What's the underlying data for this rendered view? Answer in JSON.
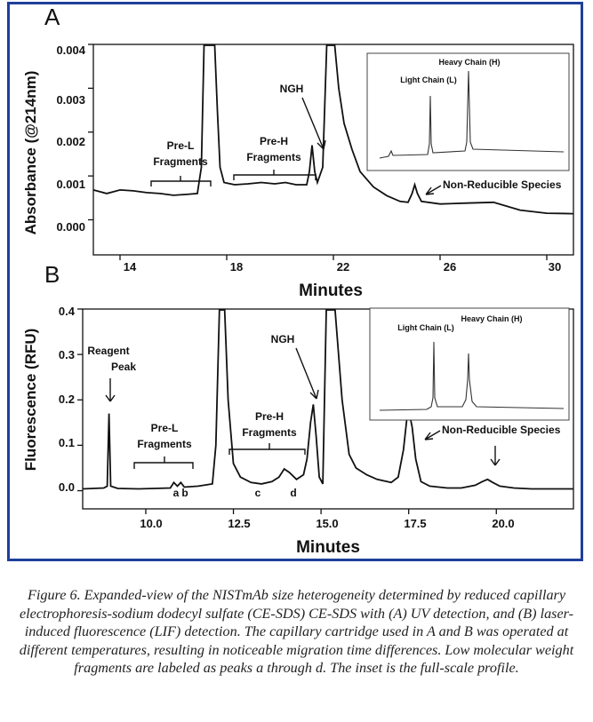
{
  "chart_data": [
    {
      "panel": "A",
      "type": "line",
      "ylabel": "Absorbance (@214nm)",
      "xlabel": "Minutes",
      "xlim": [
        13,
        31
      ],
      "ylim": [
        -0.0008,
        0.004
      ],
      "x_ticks": [
        "14",
        "18",
        "22",
        "26",
        "30"
      ],
      "y_ticks": [
        "0.004",
        "0.003",
        "0.002",
        "0.001",
        "0.000"
      ],
      "trace": [
        [
          13.0,
          0.00068
        ],
        [
          13.5,
          0.0006
        ],
        [
          14.0,
          0.00068
        ],
        [
          14.5,
          0.00066
        ],
        [
          15.0,
          0.00062
        ],
        [
          15.5,
          0.0006
        ],
        [
          16.0,
          0.00056
        ],
        [
          16.5,
          0.00058
        ],
        [
          16.9,
          0.0006
        ],
        [
          17.05,
          0.0012
        ],
        [
          17.15,
          0.004
        ],
        [
          17.55,
          0.004
        ],
        [
          17.65,
          0.0025
        ],
        [
          17.75,
          0.0012
        ],
        [
          17.9,
          0.00085
        ],
        [
          18.3,
          0.0008
        ],
        [
          18.8,
          0.00082
        ],
        [
          19.3,
          0.00085
        ],
        [
          19.8,
          0.00082
        ],
        [
          20.2,
          0.00085
        ],
        [
          20.6,
          0.0008
        ],
        [
          21.0,
          0.0008
        ],
        [
          21.1,
          0.0011
        ],
        [
          21.2,
          0.0017
        ],
        [
          21.3,
          0.0011
        ],
        [
          21.4,
          0.00085
        ],
        [
          21.6,
          0.0012
        ],
        [
          21.75,
          0.004
        ],
        [
          22.05,
          0.004
        ],
        [
          22.2,
          0.003
        ],
        [
          22.4,
          0.0022
        ],
        [
          22.7,
          0.0016
        ],
        [
          23.0,
          0.0011
        ],
        [
          23.5,
          0.00075
        ],
        [
          24.0,
          0.00055
        ],
        [
          24.5,
          0.00042
        ],
        [
          24.8,
          0.0004
        ],
        [
          24.95,
          0.0006
        ],
        [
          25.05,
          0.0008
        ],
        [
          25.15,
          0.0006
        ],
        [
          25.3,
          0.00042
        ],
        [
          26.0,
          0.00036
        ],
        [
          27.0,
          0.00038
        ],
        [
          28.0,
          0.0004
        ],
        [
          29.0,
          0.00022
        ],
        [
          30.0,
          0.00015
        ],
        [
          31.0,
          0.00014
        ]
      ],
      "annotations": {
        "pre_l": [
          "Pre-L",
          "Fragments"
        ],
        "pre_h": [
          "Pre-H",
          "Fragments"
        ],
        "ngh": "NGH",
        "nrs": "Non-Reducible Species"
      },
      "inset": {
        "light_chain": "Light Chain (L)",
        "heavy_chain": "Heavy Chain (H)"
      }
    },
    {
      "panel": "B",
      "type": "line",
      "ylabel": "Fluorescence (RFU)",
      "xlabel": "Minutes",
      "xlim": [
        8.2,
        22.2
      ],
      "ylim": [
        -0.04,
        0.4
      ],
      "x_ticks": [
        "10.0",
        "12.5",
        "15.0",
        "17.5",
        "20.0"
      ],
      "y_ticks": [
        "0.4",
        "0.3",
        "0.2",
        "0.1",
        "0.0"
      ],
      "trace": [
        [
          8.2,
          0.004
        ],
        [
          8.8,
          0.006
        ],
        [
          8.9,
          0.01
        ],
        [
          8.95,
          0.17
        ],
        [
          9.0,
          0.01
        ],
        [
          9.2,
          0.005
        ],
        [
          9.8,
          0.004
        ],
        [
          10.7,
          0.006
        ],
        [
          10.8,
          0.018
        ],
        [
          10.9,
          0.01
        ],
        [
          11.0,
          0.018
        ],
        [
          11.1,
          0.008
        ],
        [
          11.5,
          0.01
        ],
        [
          11.9,
          0.015
        ],
        [
          12.0,
          0.1
        ],
        [
          12.1,
          0.4
        ],
        [
          12.25,
          0.4
        ],
        [
          12.35,
          0.2
        ],
        [
          12.5,
          0.06
        ],
        [
          12.7,
          0.03
        ],
        [
          13.0,
          0.018
        ],
        [
          13.3,
          0.015
        ],
        [
          13.6,
          0.02
        ],
        [
          13.8,
          0.03
        ],
        [
          13.95,
          0.048
        ],
        [
          14.1,
          0.04
        ],
        [
          14.3,
          0.025
        ],
        [
          14.5,
          0.035
        ],
        [
          14.6,
          0.07
        ],
        [
          14.7,
          0.15
        ],
        [
          14.78,
          0.19
        ],
        [
          14.86,
          0.12
        ],
        [
          14.95,
          0.03
        ],
        [
          15.05,
          0.015
        ],
        [
          15.15,
          0.4
        ],
        [
          15.4,
          0.4
        ],
        [
          15.6,
          0.2
        ],
        [
          15.8,
          0.08
        ],
        [
          16.0,
          0.05
        ],
        [
          16.3,
          0.035
        ],
        [
          16.6,
          0.025
        ],
        [
          17.0,
          0.018
        ],
        [
          17.2,
          0.03
        ],
        [
          17.35,
          0.09
        ],
        [
          17.45,
          0.16
        ],
        [
          17.52,
          0.17
        ],
        [
          17.6,
          0.14
        ],
        [
          17.7,
          0.07
        ],
        [
          17.85,
          0.02
        ],
        [
          18.1,
          0.01
        ],
        [
          18.6,
          0.006
        ],
        [
          19.0,
          0.006
        ],
        [
          19.4,
          0.012
        ],
        [
          19.6,
          0.02
        ],
        [
          19.75,
          0.025
        ],
        [
          19.9,
          0.018
        ],
        [
          20.1,
          0.01
        ],
        [
          20.5,
          0.006
        ],
        [
          21.0,
          0.004
        ],
        [
          22.2,
          0.004
        ]
      ],
      "annotations": {
        "reagent": [
          "Reagent",
          "Peak"
        ],
        "pre_l": [
          "Pre-L",
          "Fragments"
        ],
        "pre_h": [
          "Pre-H",
          "Fragments"
        ],
        "ngh": "NGH",
        "nrs": "Non-Reducible Species",
        "peak_a": "a",
        "peak_b": "b",
        "peak_c": "c",
        "peak_d": "d"
      },
      "inset": {
        "light_chain": "Light Chain (L)",
        "heavy_chain": "Heavy Chain (H)"
      }
    }
  ],
  "caption": "Figure 6.  Expanded-view of the NISTmAb size heterogeneity determined by reduced capillary electrophoresis-sodium dodecyl sulfate (CE-SDS) CE-SDS with (A) UV detection, and (B) laser-induced fluorescence (LIF) detection. The capillary cartridge used in A and B was operated at different temperatures, resulting in noticeable migration time differences.  Low molecular weight fragments are labeled as peaks a through d. The inset is the full-scale profile.",
  "colors": {
    "frame": "#1f3f9a",
    "trace": "#111111"
  }
}
